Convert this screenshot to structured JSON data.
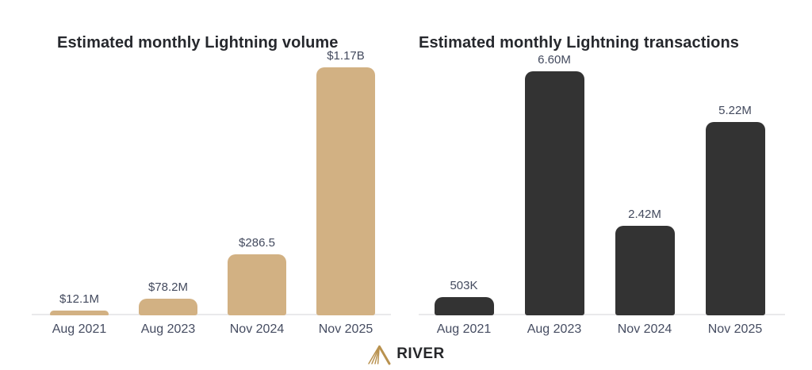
{
  "chart_data": [
    {
      "type": "bar",
      "title": "Estimated monthly Lightning volume",
      "categories": [
        "Aug 2021",
        "Aug 2023",
        "Nov 2024",
        "Nov 2025"
      ],
      "values": [
        12.1,
        78.2,
        286.5,
        1170
      ],
      "value_labels": [
        "$12.1M",
        "$78.2M",
        "$286.5",
        "$1.17B"
      ],
      "bar_color": "#d2b183",
      "xlabel": "",
      "ylabel": "",
      "grid": false,
      "legend": false
    },
    {
      "type": "bar",
      "title": "Estimated monthly Lightning transactions",
      "categories": [
        "Aug 2021",
        "Aug 2023",
        "Nov 2024",
        "Nov 2025"
      ],
      "values": [
        0.503,
        6.6,
        2.42,
        5.22
      ],
      "value_labels": [
        "503K",
        "6.60M",
        "2.42M",
        "5.22M"
      ],
      "bar_color": "#333333",
      "xlabel": "",
      "ylabel": "",
      "grid": false,
      "legend": false
    }
  ],
  "colors": {
    "background": "#ffffff",
    "volume_bar": "#d2b183",
    "transactions_bar": "#333333",
    "axis_line": "#e9e9eb",
    "label_text": "#454c61",
    "title_text": "#26282d",
    "logo_gold": "#b9924f"
  },
  "footer": {
    "brand": "RIVER"
  }
}
